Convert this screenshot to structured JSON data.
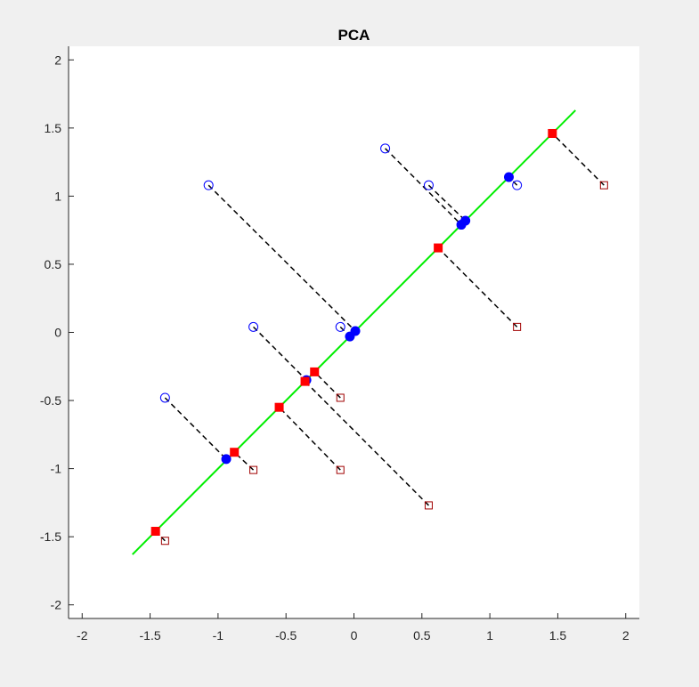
{
  "chart_data": {
    "type": "scatter",
    "title": "PCA",
    "xlabel": "",
    "ylabel": "",
    "xlim": [
      -2.1,
      2.1
    ],
    "ylim": [
      -2.1,
      2.1
    ],
    "xticks": [
      -2,
      -1.5,
      -1,
      -0.5,
      0,
      0.5,
      1,
      1.5,
      2
    ],
    "yticks": [
      -2,
      -1.5,
      -1,
      -0.5,
      0,
      0.5,
      1,
      1.5,
      2
    ],
    "xtick_labels": [
      "-2",
      "-1.5",
      "-1",
      "-0.5",
      "0",
      "0.5",
      "1",
      "1.5",
      "2"
    ],
    "ytick_labels": [
      "-2",
      "-1.5",
      "-1",
      "-0.5",
      "0",
      "0.5",
      "1",
      "1.5",
      "2"
    ],
    "grid": false,
    "principal_axis": {
      "from": [
        -1.63,
        -1.63
      ],
      "to": [
        1.63,
        1.63
      ],
      "color": "#00ee00"
    },
    "colors": {
      "original": "#0000ff",
      "projection": "#0000ff",
      "background": "#ffffff",
      "figure": "#f0f0f0",
      "square": "#ff0000",
      "connector": "#000000"
    },
    "circle_points": [
      {
        "x": -1.39,
        "y": -0.48
      },
      {
        "x": -1.07,
        "y": 1.08
      },
      {
        "x": -0.74,
        "y": 0.04
      },
      {
        "x": -0.1,
        "y": 0.04
      },
      {
        "x": 0.23,
        "y": 1.35
      },
      {
        "x": 0.55,
        "y": 1.08
      },
      {
        "x": 1.2,
        "y": 1.08
      }
    ],
    "circle_projections": [
      {
        "x": -0.94,
        "y": -0.93
      },
      {
        "x": 0.01,
        "y": 0.01
      },
      {
        "x": -0.35,
        "y": -0.35
      },
      {
        "x": -0.03,
        "y": -0.03
      },
      {
        "x": 0.79,
        "y": 0.79
      },
      {
        "x": 0.82,
        "y": 0.82
      },
      {
        "x": 1.14,
        "y": 1.14
      }
    ],
    "square_points": [
      {
        "x": -1.39,
        "y": -1.53
      },
      {
        "x": -0.74,
        "y": -1.01
      },
      {
        "x": -0.1,
        "y": -1.01
      },
      {
        "x": -0.1,
        "y": -0.48
      },
      {
        "x": 0.55,
        "y": -1.27
      },
      {
        "x": 1.2,
        "y": 0.04
      },
      {
        "x": 1.84,
        "y": 1.08
      }
    ],
    "square_projections": [
      {
        "x": -1.46,
        "y": -1.46
      },
      {
        "x": -0.88,
        "y": -0.88
      },
      {
        "x": -0.55,
        "y": -0.55
      },
      {
        "x": -0.29,
        "y": -0.29
      },
      {
        "x": -0.36,
        "y": -0.36
      },
      {
        "x": 0.62,
        "y": 0.62
      },
      {
        "x": 1.46,
        "y": 1.46
      }
    ]
  }
}
